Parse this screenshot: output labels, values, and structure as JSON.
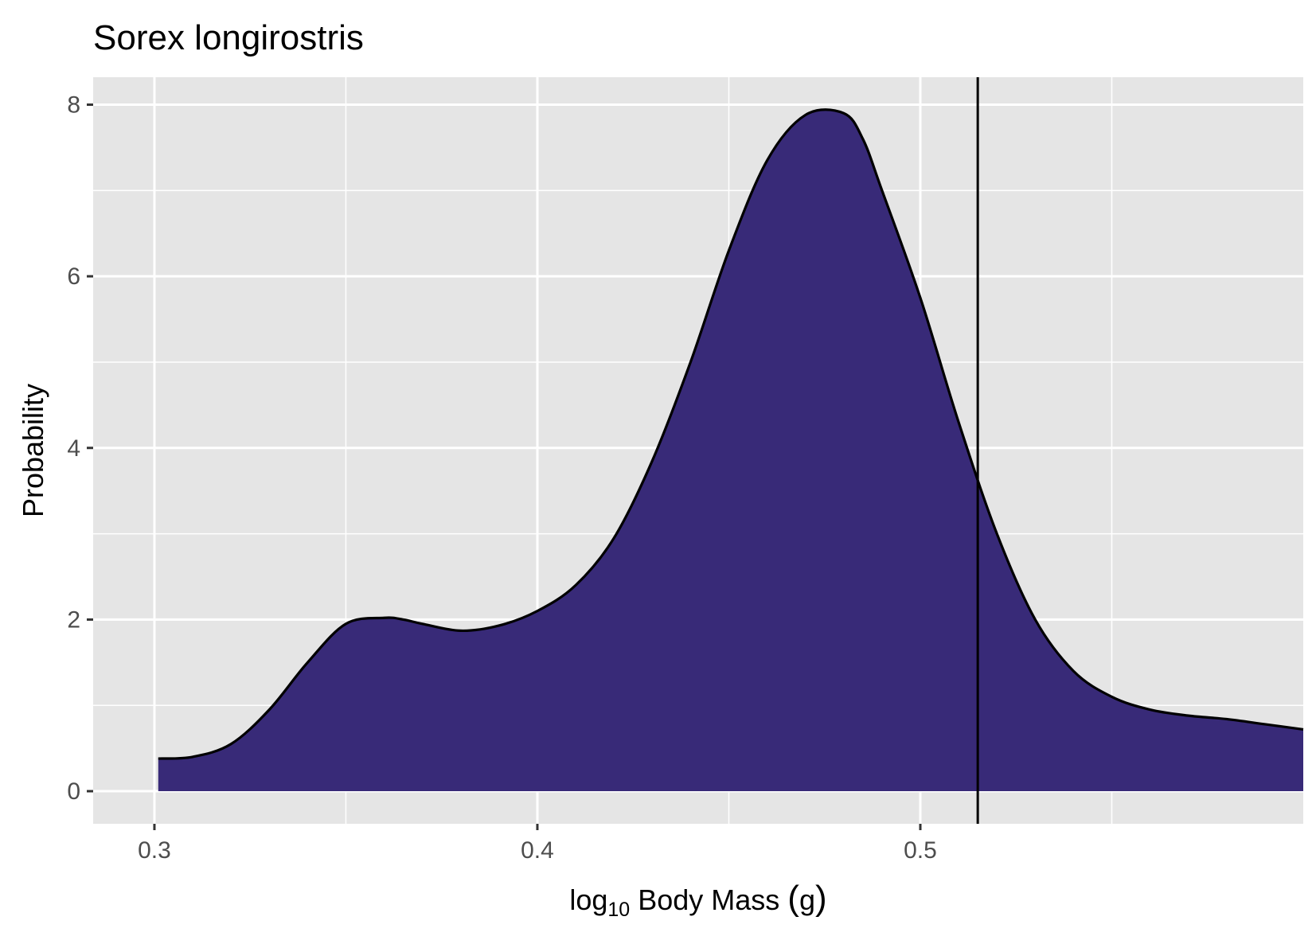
{
  "chart_data": {
    "type": "area",
    "title": "Sorex longirostris",
    "xlabel": "log10 Body Mass (g)",
    "xlabel_parts": {
      "base": "log",
      "sub": "10",
      "rest": " Body Mass ",
      "paren_open": "(",
      "unit": "g",
      "paren_close": ")"
    },
    "ylabel": "Probability",
    "xlim": [
      0.284,
      0.6
    ],
    "ylim": [
      -0.38,
      8.32
    ],
    "x_ticks": [
      0.3,
      0.4,
      0.5
    ],
    "x_tick_labels": [
      "0.3",
      "0.4",
      "0.5"
    ],
    "x_minor_ticks": [
      0.35,
      0.45,
      0.55
    ],
    "y_ticks": [
      0,
      2,
      4,
      6,
      8
    ],
    "y_tick_labels": [
      "0",
      "2",
      "4",
      "6",
      "8"
    ],
    "y_minor_ticks": [
      1,
      3,
      5,
      7
    ],
    "grid": true,
    "reference_line_x": 0.515,
    "series": [
      {
        "fill": "#382a78",
        "x": [
          0.301,
          0.31,
          0.32,
          0.33,
          0.34,
          0.35,
          0.36,
          0.365,
          0.37,
          0.38,
          0.39,
          0.4,
          0.41,
          0.42,
          0.43,
          0.44,
          0.45,
          0.46,
          0.47,
          0.48,
          0.485,
          0.49,
          0.5,
          0.51,
          0.52,
          0.53,
          0.54,
          0.55,
          0.56,
          0.57,
          0.58,
          0.59,
          0.6
        ],
        "y": [
          0.38,
          0.4,
          0.55,
          0.95,
          1.5,
          1.95,
          2.02,
          2.0,
          1.95,
          1.87,
          1.93,
          2.1,
          2.4,
          2.95,
          3.85,
          5.0,
          6.3,
          7.35,
          7.88,
          7.9,
          7.6,
          7.0,
          5.75,
          4.3,
          3.0,
          2.0,
          1.4,
          1.1,
          0.95,
          0.88,
          0.84,
          0.78,
          0.72
        ]
      }
    ]
  },
  "colors": {
    "panel_background": "#e5e5e5",
    "grid": "#ffffff",
    "area_fill": "#382a78",
    "outline": "#000000"
  }
}
